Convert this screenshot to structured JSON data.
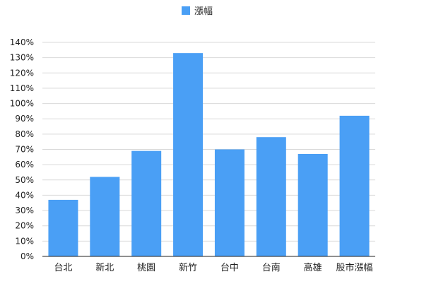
{
  "chart_data": {
    "type": "bar",
    "categories": [
      "台北",
      "新北",
      "桃園",
      "新竹",
      "台中",
      "台南",
      "高雄",
      "股市漲幅"
    ],
    "series": [
      {
        "name": "漲幅",
        "values": [
          37,
          52,
          69,
          133,
          70,
          78,
          67,
          92
        ]
      }
    ],
    "ylim": [
      0,
      140
    ],
    "y_ticks": [
      0,
      10,
      20,
      30,
      40,
      50,
      60,
      70,
      80,
      90,
      100,
      110,
      120,
      130,
      140
    ],
    "y_unit": "%",
    "grid": true,
    "legend_position": "top-center",
    "bar_color": "#4a9ff5"
  }
}
